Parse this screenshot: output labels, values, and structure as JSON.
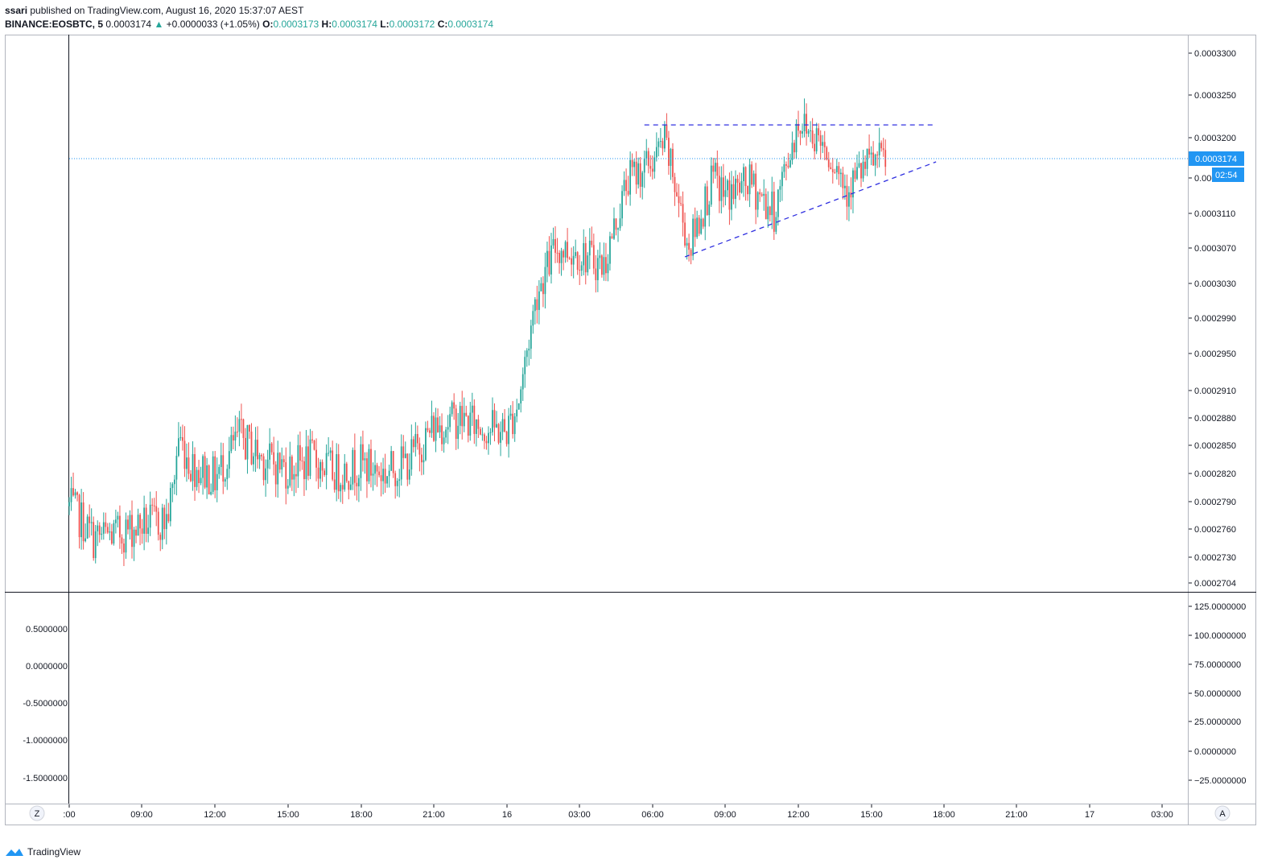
{
  "header": {
    "publisher": "ssari",
    "published_text": "published on TradingView.com, August 16, 2020 15:37:07 AEST",
    "symbol": "BINANCE:EOSBTC, 5",
    "last": "0.0003174",
    "change": "+0.0000033 (+1.05%)",
    "o_label": "O:",
    "o_value": "0.0003173",
    "h_label": "H:",
    "h_value": "0.0003174",
    "l_label": "L:",
    "l_value": "0.0003172",
    "c_label": "C:",
    "c_value": "0.0003174"
  },
  "price_axis": {
    "ticks": [
      "0.0003300",
      "0.0003250",
      "0.0003200",
      "0.0003150",
      "0.0003110",
      "0.0003070",
      "0.0003030",
      "0.0002990",
      "0.0002950",
      "0.0002910",
      "0.0002880",
      "0.0002850",
      "0.0002820",
      "0.0002790",
      "0.0002760",
      "0.0002730",
      "0.0002704"
    ],
    "last_price_label": "0.0003174",
    "countdown_label": "02:54"
  },
  "indicator": {
    "left_ticks": [
      "0.5000000",
      "0.0000000",
      "-0.5000000",
      "-1.0000000",
      "-1.5000000"
    ],
    "right_ticks": [
      "125.0000000",
      "100.0000000",
      "75.0000000",
      "50.0000000",
      "25.0000000",
      "0.0000000",
      "−25.0000000"
    ]
  },
  "time_axis": {
    "labels": [
      ":00",
      "09:00",
      "12:00",
      "15:00",
      "18:00",
      "21:00",
      "16",
      "03:00",
      "06:00",
      "09:00",
      "12:00",
      "15:00",
      "18:00",
      "21:00",
      "17",
      "03:00"
    ],
    "left_button": "Z",
    "right_button": "A"
  },
  "footer": {
    "brand": "TradingView"
  },
  "colors": {
    "up": "#26a69a",
    "down": "#ef5350",
    "trendline": "#3030e0",
    "price_line": "#2196f3",
    "axis_text": "#131722",
    "border": "#b2b5be"
  },
  "chart_data": {
    "type": "candlestick",
    "title": "",
    "symbol": "BINANCE:EOSBTC",
    "interval": "5",
    "last_price": 0.0003174,
    "ylim": [
      0.00027,
      0.000333
    ],
    "x_range": [
      "Aug 15 06:00",
      "Aug 17 04:00"
    ],
    "close_path": [
      {
        "t": "Aug 15 06:00",
        "c": 0.0002785
      },
      {
        "t": "Aug 15 06:30",
        "c": 0.000277
      },
      {
        "t": "Aug 15 07:00",
        "c": 0.000275
      },
      {
        "t": "Aug 15 08:00",
        "c": 0.0002755
      },
      {
        "t": "Aug 15 09:00",
        "c": 0.0002765
      },
      {
        "t": "Aug 15 10:00",
        "c": 0.000277
      },
      {
        "t": "Aug 15 10:15",
        "c": 0.00028
      },
      {
        "t": "Aug 15 10:30",
        "c": 0.000286
      },
      {
        "t": "Aug 15 11:00",
        "c": 0.000283
      },
      {
        "t": "Aug 15 12:00",
        "c": 0.0002815
      },
      {
        "t": "Aug 15 13:00",
        "c": 0.000286
      },
      {
        "t": "Aug 15 14:00",
        "c": 0.0002835
      },
      {
        "t": "Aug 15 15:00",
        "c": 0.0002825
      },
      {
        "t": "Aug 15 16:00",
        "c": 0.0002835
      },
      {
        "t": "Aug 15 17:00",
        "c": 0.000282
      },
      {
        "t": "Aug 15 18:00",
        "c": 0.000283
      },
      {
        "t": "Aug 15 19:00",
        "c": 0.000282
      },
      {
        "t": "Aug 15 20:00",
        "c": 0.0002835
      },
      {
        "t": "Aug 15 21:00",
        "c": 0.000287
      },
      {
        "t": "Aug 15 22:00",
        "c": 0.000288
      },
      {
        "t": "Aug 15 23:00",
        "c": 0.000287
      },
      {
        "t": "Aug 16 00:00",
        "c": 0.0002865
      },
      {
        "t": "Aug 16 00:30",
        "c": 0.00029
      },
      {
        "t": "Aug 16 01:15",
        "c": 0.000302
      },
      {
        "t": "Aug 16 02:00",
        "c": 0.000307
      },
      {
        "t": "Aug 16 03:00",
        "c": 0.0003065
      },
      {
        "t": "Aug 16 04:00",
        "c": 0.000305
      },
      {
        "t": "Aug 16 05:00",
        "c": 0.000315
      },
      {
        "t": "Aug 16 06:00",
        "c": 0.000317
      },
      {
        "t": "Aug 16 06:30",
        "c": 0.0003195
      },
      {
        "t": "Aug 16 07:30",
        "c": 0.000307
      },
      {
        "t": "Aug 16 08:30",
        "c": 0.000315
      },
      {
        "t": "Aug 16 09:00",
        "c": 0.000313
      },
      {
        "t": "Aug 16 10:00",
        "c": 0.0003145
      },
      {
        "t": "Aug 16 11:00",
        "c": 0.000311
      },
      {
        "t": "Aug 16 12:00",
        "c": 0.000322
      },
      {
        "t": "Aug 16 13:00",
        "c": 0.0003195
      },
      {
        "t": "Aug 16 14:00",
        "c": 0.000314
      },
      {
        "t": "Aug 16 15:00",
        "c": 0.000317
      },
      {
        "t": "Aug 16 15:35",
        "c": 0.0003174
      }
    ],
    "drawings": [
      {
        "type": "horizontal_dashed",
        "price": 0.0003215,
        "from": "Aug 16 05:40",
        "to": "Aug 16 17:40"
      },
      {
        "type": "trendline_dashed",
        "from": {
          "t": "Aug 16 07:20",
          "p": 0.000306
        },
        "to": {
          "t": "Aug 16 17:40",
          "p": 0.000317
        }
      }
    ]
  }
}
